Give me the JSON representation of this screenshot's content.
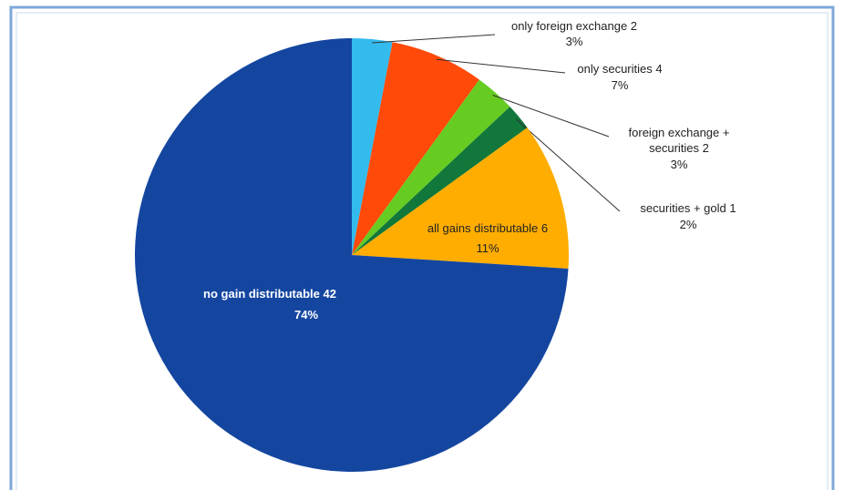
{
  "chart_data": {
    "type": "pie",
    "categories": [
      "only foreign exchange 2",
      "only securities 4",
      "foreign exchange +\nsecurities 2",
      "securities + gold  1",
      "all gains distributable 6",
      "no gain distributable 42"
    ],
    "values": [
      3,
      7,
      3,
      2,
      11,
      74
    ],
    "value_labels": [
      "3%",
      "7%",
      "3%",
      "2%",
      "11%",
      "74%"
    ],
    "colors": [
      "#33bbee",
      "#ff4a0a",
      "#66cc22",
      "#11773a",
      "#ffad00",
      "#1446a0"
    ]
  }
}
